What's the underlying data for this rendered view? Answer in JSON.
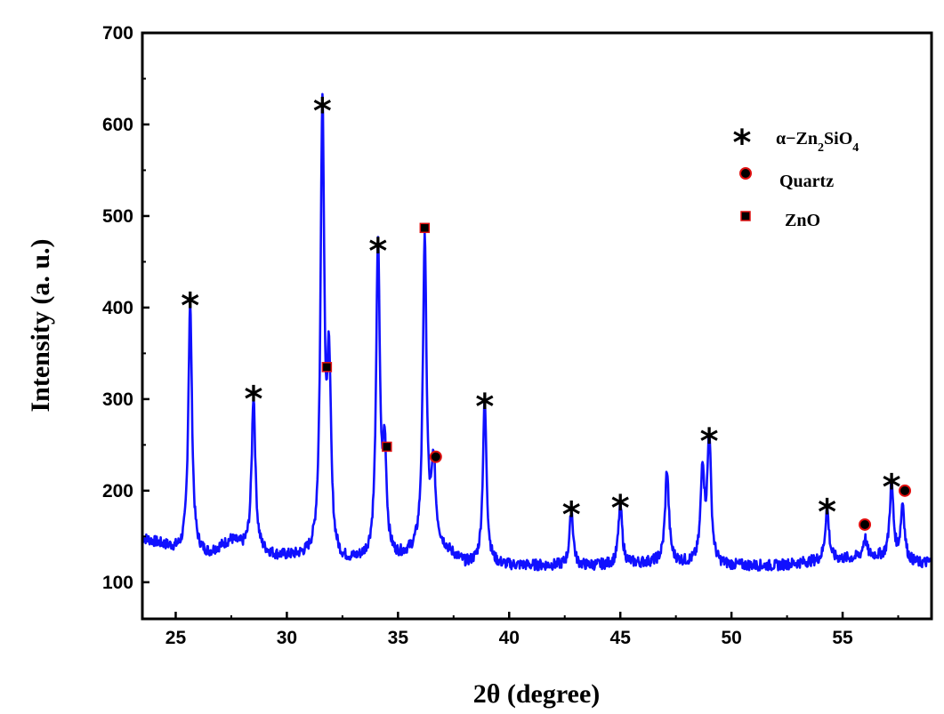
{
  "chart_data": {
    "type": "line",
    "title": "",
    "xlabel": "2θ (degree)",
    "ylabel": "Intensity  (a. u.)",
    "xlim": [
      23.5,
      59
    ],
    "ylim": [
      60,
      700
    ],
    "x_ticks": [
      25,
      30,
      35,
      40,
      45,
      50,
      55
    ],
    "y_ticks": [
      100,
      200,
      300,
      400,
      500,
      600,
      700
    ],
    "grid": false,
    "line_color": "#1010ff",
    "series": [
      {
        "baseline": [
          [
            23.5,
            148
          ],
          [
            24.5,
            140
          ],
          [
            25.2,
            133
          ],
          [
            26.5,
            130
          ],
          [
            27.5,
            145
          ],
          [
            28,
            138
          ],
          [
            29.5,
            128
          ],
          [
            31,
            126
          ],
          [
            32.5,
            120
          ],
          [
            33.5,
            123
          ],
          [
            35,
            125
          ],
          [
            36.8,
            140
          ],
          [
            38,
            120
          ],
          [
            40,
            118
          ],
          [
            42,
            118
          ],
          [
            43,
            117
          ],
          [
            45.5,
            120
          ],
          [
            47,
            122
          ],
          [
            49.5,
            118
          ],
          [
            52,
            118
          ],
          [
            53.5,
            122
          ],
          [
            56.5,
            128
          ],
          [
            58.5,
            120
          ],
          [
            59,
            122
          ]
        ],
        "peaks": [
          {
            "x": 25.65,
            "y": 405
          },
          {
            "x": 28.5,
            "y": 303
          },
          {
            "x": 31.6,
            "y": 618
          },
          {
            "x": 31.9,
            "y": 322
          },
          {
            "x": 34.1,
            "y": 466
          },
          {
            "x": 34.4,
            "y": 235
          },
          {
            "x": 36.2,
            "y": 472
          },
          {
            "x": 36.6,
            "y": 225
          },
          {
            "x": 38.9,
            "y": 297
          },
          {
            "x": 42.8,
            "y": 178
          },
          {
            "x": 45.0,
            "y": 185
          },
          {
            "x": 47.1,
            "y": 222
          },
          {
            "x": 48.7,
            "y": 222
          },
          {
            "x": 49.0,
            "y": 257
          },
          {
            "x": 54.3,
            "y": 181
          },
          {
            "x": 56.0,
            "y": 148
          },
          {
            "x": 57.2,
            "y": 208
          },
          {
            "x": 57.7,
            "y": 185
          }
        ]
      }
    ],
    "markers": [
      {
        "type": "star",
        "x": 25.65,
        "y": 410
      },
      {
        "type": "star",
        "x": 28.5,
        "y": 308
      },
      {
        "type": "star",
        "x": 31.6,
        "y": 623
      },
      {
        "type": "star",
        "x": 34.1,
        "y": 470
      },
      {
        "type": "star",
        "x": 38.9,
        "y": 300
      },
      {
        "type": "star",
        "x": 42.8,
        "y": 182
      },
      {
        "type": "star",
        "x": 45.0,
        "y": 189
      },
      {
        "type": "star",
        "x": 49.0,
        "y": 262
      },
      {
        "type": "star",
        "x": 54.3,
        "y": 185
      },
      {
        "type": "star",
        "x": 57.2,
        "y": 212
      },
      {
        "type": "square",
        "x": 31.8,
        "y": 335
      },
      {
        "type": "square",
        "x": 34.5,
        "y": 248
      },
      {
        "type": "square",
        "x": 36.2,
        "y": 487
      },
      {
        "type": "circle",
        "x": 36.7,
        "y": 237
      },
      {
        "type": "circle",
        "x": 56.0,
        "y": 163
      },
      {
        "type": "circle",
        "x": 57.8,
        "y": 200
      }
    ],
    "legend": {
      "position": "top-right",
      "entries": [
        {
          "marker": "star",
          "label_main": "α−Zn",
          "sub1": "2",
          "mid": "SiO",
          "sub2": "4"
        },
        {
          "marker": "circle",
          "label": "Quartz"
        },
        {
          "marker": "square",
          "label": "ZnO"
        }
      ]
    },
    "marker_colors": {
      "star": "#000000",
      "circle_fill": "#000000",
      "circle_edge": "#e01010",
      "square_fill": "#000000",
      "square_edge": "#e01010"
    }
  }
}
